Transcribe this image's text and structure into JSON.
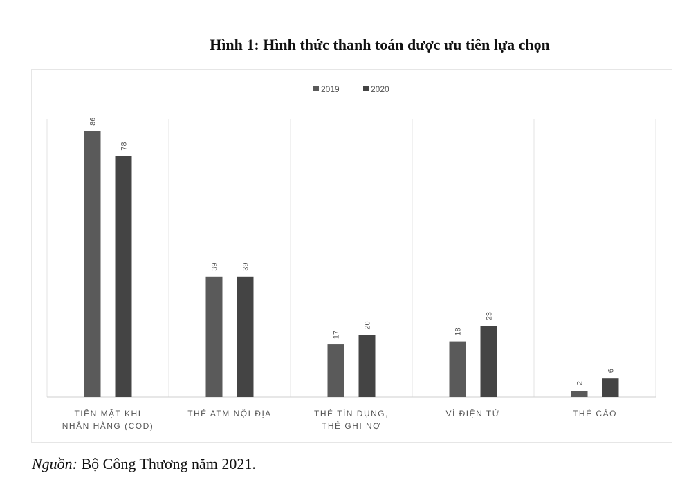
{
  "figure_title": "Hình 1: Hình thức thanh toán được ưu tiên lựa chọn",
  "source": {
    "label": "Nguồn:",
    "text": "Bộ Công Thương  năm 2021."
  },
  "colors": {
    "series_2019": "#5a5a5a",
    "series_2020": "#444444",
    "gridline": "#e3e3e3",
    "axis": "#cfcfcf",
    "label_text": "#555555"
  },
  "chart_data": {
    "type": "bar",
    "title": "",
    "xlabel": "",
    "ylabel": "",
    "ylim": [
      0,
      90
    ],
    "grid": "vertical-separators",
    "legend": "top-center",
    "categories": [
      [
        "TIỀN MẶT KHI",
        "NHẬN HÀNG (COD)"
      ],
      [
        "THẺ ATM NỘI ĐỊA"
      ],
      [
        "THẺ TÍN DỤNG,",
        "THẺ GHI NỢ"
      ],
      [
        "VÍ ĐIỆN TỬ"
      ],
      [
        "THẺ CÀO"
      ]
    ],
    "series": [
      {
        "name": "2019",
        "values": [
          86,
          39,
          17,
          18,
          2
        ]
      },
      {
        "name": "2020",
        "values": [
          78,
          39,
          20,
          23,
          6
        ]
      }
    ]
  }
}
